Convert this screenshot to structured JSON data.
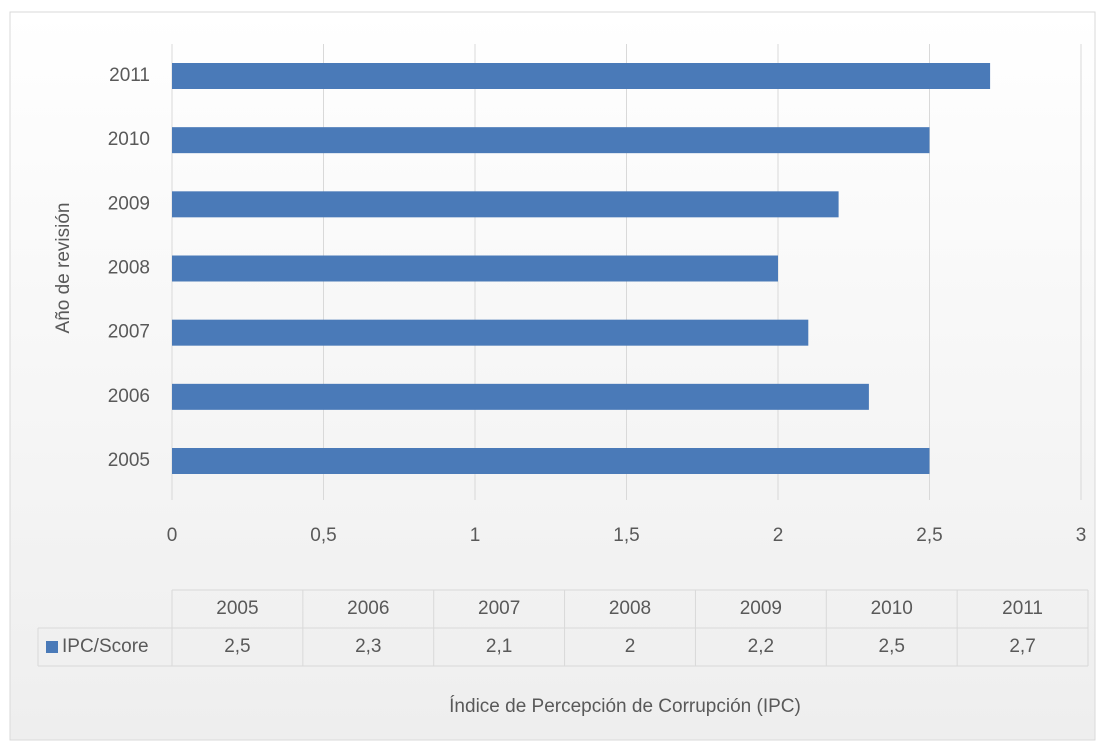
{
  "chart_data": {
    "type": "hbar",
    "categories": [
      "2005",
      "2006",
      "2007",
      "2008",
      "2009",
      "2010",
      "2011"
    ],
    "series": [
      {
        "name": "IPC/Score",
        "color": "#4a7ab8",
        "values": [
          2.5,
          2.3,
          2.1,
          2,
          2.2,
          2.5,
          2.7
        ],
        "value_labels": [
          "2,5",
          "2,3",
          "2,1",
          "2",
          "2,2",
          "2,5",
          "2,7"
        ]
      }
    ],
    "xlim": [
      0,
      3
    ],
    "xticks": [
      0,
      {
        "value": 0.5,
        "label": "0,5"
      },
      1,
      {
        "value": 1.5,
        "label": "1,5"
      },
      2,
      {
        "value": 2.5,
        "label": "2,5"
      },
      3
    ],
    "grid": true,
    "xlabel": "Índice de Percepción de Corrupción (IPC)",
    "ylabel": "Año de revisión"
  }
}
